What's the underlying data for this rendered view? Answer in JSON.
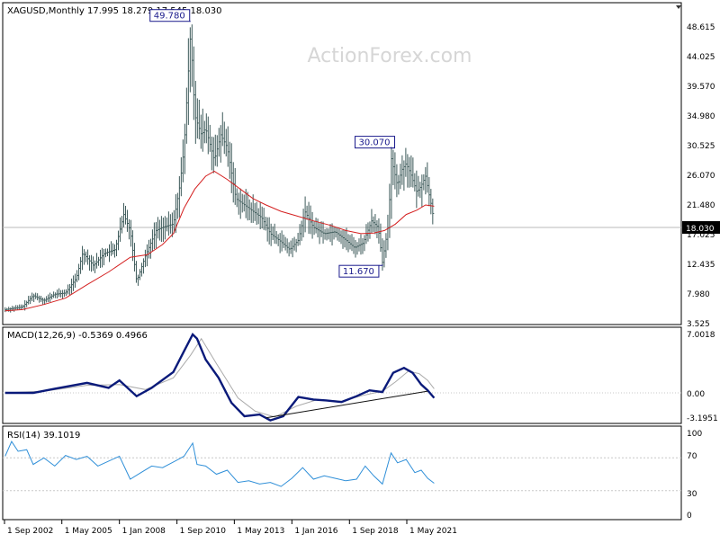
{
  "watermark": "ActionForex.com",
  "colors": {
    "price": "#3d5a5a",
    "ma": "#d42020",
    "macd": "#0a1a7a",
    "signal": "#aaaaaa",
    "rsi": "#2f8fd8",
    "trendline": "#111111",
    "label_border": "#1a1a8c",
    "grid": "#c8c8c8"
  },
  "chart_data": [
    {
      "type": "ohlc",
      "panel": "price",
      "header": "XAGUSD,Monthly  17.995 18.279 17.545 18.030",
      "y_ticks": [
        "48.615",
        "44.025",
        "39.570",
        "34.980",
        "30.525",
        "26.070",
        "21.480",
        "17.025",
        "12.435",
        "7.980",
        "3.525"
      ],
      "current_value": "18.030",
      "annotations": [
        {
          "label": "49.780",
          "date": 2011.3,
          "value": 49.78
        },
        {
          "label": "30.070",
          "date": 2020.6,
          "value": 30.07
        },
        {
          "label": "11.670",
          "date": 2020.2,
          "value": 11.67
        }
      ],
      "price_path": [
        [
          2002.7,
          4.6
        ],
        [
          2003.5,
          5.0
        ],
        [
          2004.0,
          6.8
        ],
        [
          2004.5,
          6.0
        ],
        [
          2005.0,
          7.0
        ],
        [
          2005.5,
          7.2
        ],
        [
          2006.0,
          9.5
        ],
        [
          2006.3,
          13.5
        ],
        [
          2006.8,
          11.5
        ],
        [
          2007.3,
          13.4
        ],
        [
          2007.8,
          14.0
        ],
        [
          2008.2,
          19.5
        ],
        [
          2008.5,
          17.0
        ],
        [
          2008.8,
          9.0
        ],
        [
          2009.2,
          13.0
        ],
        [
          2009.7,
          17.0
        ],
        [
          2010.0,
          17.5
        ],
        [
          2010.5,
          18.0
        ],
        [
          2010.8,
          24.0
        ],
        [
          2011.0,
          30.0
        ],
        [
          2011.3,
          48.0
        ],
        [
          2011.5,
          35.0
        ],
        [
          2011.8,
          32.0
        ],
        [
          2012.0,
          33.0
        ],
        [
          2012.4,
          28.0
        ],
        [
          2012.7,
          32.0
        ],
        [
          2013.0,
          30.0
        ],
        [
          2013.4,
          22.0
        ],
        [
          2013.8,
          21.0
        ],
        [
          2014.2,
          20.0
        ],
        [
          2014.6,
          19.0
        ],
        [
          2015.0,
          16.5
        ],
        [
          2015.4,
          15.5
        ],
        [
          2015.9,
          14.0
        ],
        [
          2016.3,
          15.5
        ],
        [
          2016.6,
          20.0
        ],
        [
          2017.0,
          17.5
        ],
        [
          2017.5,
          16.5
        ],
        [
          2018.0,
          16.8
        ],
        [
          2018.5,
          15.5
        ],
        [
          2018.9,
          14.3
        ],
        [
          2019.3,
          15.0
        ],
        [
          2019.7,
          18.5
        ],
        [
          2020.0,
          17.5
        ],
        [
          2020.2,
          12.0
        ],
        [
          2020.5,
          18.5
        ],
        [
          2020.6,
          28.5
        ],
        [
          2020.9,
          24.0
        ],
        [
          2021.1,
          26.5
        ],
        [
          2021.3,
          27.5
        ],
        [
          2021.5,
          26.0
        ],
        [
          2021.8,
          23.0
        ],
        [
          2022.0,
          24.0
        ],
        [
          2022.2,
          25.5
        ],
        [
          2022.4,
          22.0
        ],
        [
          2022.5,
          20.5
        ],
        [
          2022.6,
          18.0
        ]
      ],
      "ma_path": [
        [
          2002.7,
          4.4
        ],
        [
          2003.5,
          4.6
        ],
        [
          2004.5,
          5.4
        ],
        [
          2005.5,
          6.4
        ],
        [
          2006.5,
          8.5
        ],
        [
          2007.5,
          10.5
        ],
        [
          2008.5,
          12.8
        ],
        [
          2009.3,
          13.2
        ],
        [
          2010.0,
          14.8
        ],
        [
          2010.5,
          16.5
        ],
        [
          2011.0,
          20.5
        ],
        [
          2011.5,
          23.5
        ],
        [
          2012.0,
          25.5
        ],
        [
          2012.4,
          26.3
        ],
        [
          2013.0,
          25.0
        ],
        [
          2013.6,
          23.5
        ],
        [
          2014.2,
          22.0
        ],
        [
          2014.8,
          21.0
        ],
        [
          2015.5,
          20.0
        ],
        [
          2016.2,
          19.3
        ],
        [
          2017.0,
          18.5
        ],
        [
          2017.8,
          17.8
        ],
        [
          2018.5,
          17.0
        ],
        [
          2019.2,
          16.5
        ],
        [
          2019.8,
          16.6
        ],
        [
          2020.3,
          17.0
        ],
        [
          2020.8,
          18.0
        ],
        [
          2021.3,
          19.5
        ],
        [
          2021.8,
          20.2
        ],
        [
          2022.2,
          21.0
        ],
        [
          2022.6,
          20.8
        ]
      ]
    },
    {
      "type": "line",
      "panel": "macd",
      "header": "MACD(12,26,9) -0.5369 0.4966",
      "y_ticks": [
        "7.0018",
        "0.00",
        "-3.1951"
      ],
      "macd_path": [
        [
          2002.7,
          0.0
        ],
        [
          2004.0,
          0.0
        ],
        [
          2005.0,
          0.5
        ],
        [
          2006.5,
          1.2
        ],
        [
          2007.5,
          0.6
        ],
        [
          2008.0,
          1.5
        ],
        [
          2008.8,
          -0.4
        ],
        [
          2009.5,
          0.6
        ],
        [
          2010.5,
          2.5
        ],
        [
          2011.0,
          5.0
        ],
        [
          2011.4,
          7.0
        ],
        [
          2011.6,
          6.5
        ],
        [
          2012.0,
          4.0
        ],
        [
          2012.6,
          1.8
        ],
        [
          2013.2,
          -1.2
        ],
        [
          2013.8,
          -2.8
        ],
        [
          2014.5,
          -2.6
        ],
        [
          2015.0,
          -3.3
        ],
        [
          2015.6,
          -2.8
        ],
        [
          2016.3,
          -0.5
        ],
        [
          2017.0,
          -0.8
        ],
        [
          2017.6,
          -0.9
        ],
        [
          2018.3,
          -1.1
        ],
        [
          2019.0,
          -0.4
        ],
        [
          2019.6,
          0.3
        ],
        [
          2020.2,
          0.1
        ],
        [
          2020.7,
          2.4
        ],
        [
          2021.2,
          3.0
        ],
        [
          2021.6,
          2.4
        ],
        [
          2022.0,
          1.0
        ],
        [
          2022.3,
          0.3
        ],
        [
          2022.6,
          -0.6
        ]
      ],
      "signal_path": [
        [
          2002.7,
          0.0
        ],
        [
          2004.5,
          0.2
        ],
        [
          2006.5,
          0.9
        ],
        [
          2008.0,
          1.0
        ],
        [
          2009.2,
          0.4
        ],
        [
          2010.5,
          1.8
        ],
        [
          2011.3,
          4.5
        ],
        [
          2011.8,
          6.5
        ],
        [
          2012.5,
          3.5
        ],
        [
          2013.5,
          -0.6
        ],
        [
          2014.3,
          -2.2
        ],
        [
          2015.2,
          -2.9
        ],
        [
          2016.2,
          -1.6
        ],
        [
          2017.2,
          -0.8
        ],
        [
          2018.3,
          -1.0
        ],
        [
          2019.3,
          -0.3
        ],
        [
          2020.2,
          0.2
        ],
        [
          2020.8,
          1.3
        ],
        [
          2021.4,
          2.6
        ],
        [
          2021.9,
          2.3
        ],
        [
          2022.3,
          1.5
        ],
        [
          2022.6,
          0.5
        ]
      ],
      "trendline": [
        [
          2014.8,
          -3.0
        ],
        [
          2022.3,
          0.2
        ]
      ]
    },
    {
      "type": "line",
      "panel": "rsi",
      "header": "RSI(14) 39.1019",
      "y_ticks": [
        "100",
        "70",
        "30",
        "0"
      ],
      "levels": [
        70,
        30
      ],
      "rsi_path": [
        [
          2002.7,
          72
        ],
        [
          2003.0,
          90
        ],
        [
          2003.3,
          78
        ],
        [
          2003.7,
          80
        ],
        [
          2004.0,
          62
        ],
        [
          2004.5,
          70
        ],
        [
          2005.0,
          60
        ],
        [
          2005.5,
          73
        ],
        [
          2006.0,
          68
        ],
        [
          2006.5,
          72
        ],
        [
          2007.0,
          60
        ],
        [
          2007.5,
          66
        ],
        [
          2008.0,
          72
        ],
        [
          2008.5,
          44
        ],
        [
          2009.0,
          52
        ],
        [
          2009.5,
          60
        ],
        [
          2010.0,
          58
        ],
        [
          2010.5,
          65
        ],
        [
          2011.0,
          72
        ],
        [
          2011.4,
          88
        ],
        [
          2011.6,
          62
        ],
        [
          2012.0,
          60
        ],
        [
          2012.5,
          50
        ],
        [
          2013.0,
          55
        ],
        [
          2013.5,
          40
        ],
        [
          2014.0,
          42
        ],
        [
          2014.5,
          38
        ],
        [
          2015.0,
          40
        ],
        [
          2015.5,
          35
        ],
        [
          2016.0,
          45
        ],
        [
          2016.5,
          58
        ],
        [
          2017.0,
          44
        ],
        [
          2017.5,
          48
        ],
        [
          2018.0,
          45
        ],
        [
          2018.5,
          42
        ],
        [
          2019.0,
          44
        ],
        [
          2019.4,
          60
        ],
        [
          2019.8,
          48
        ],
        [
          2020.2,
          38
        ],
        [
          2020.6,
          76
        ],
        [
          2020.9,
          64
        ],
        [
          2021.3,
          68
        ],
        [
          2021.7,
          52
        ],
        [
          2022.0,
          55
        ],
        [
          2022.3,
          45
        ],
        [
          2022.6,
          39
        ]
      ]
    }
  ],
  "x_axis": {
    "labels": [
      {
        "text": "1 Sep 2002",
        "date": 2002.67
      },
      {
        "text": "1 May 2005",
        "date": 2005.33
      },
      {
        "text": "1 Jan 2008",
        "date": 2008.0
      },
      {
        "text": "1 Sep 2010",
        "date": 2010.67
      },
      {
        "text": "1 May 2013",
        "date": 2013.33
      },
      {
        "text": "1 Jan 2016",
        "date": 2016.0
      },
      {
        "text": "1 Sep 2018",
        "date": 2018.67
      },
      {
        "text": "1 May 2021",
        "date": 2021.33
      }
    ]
  }
}
